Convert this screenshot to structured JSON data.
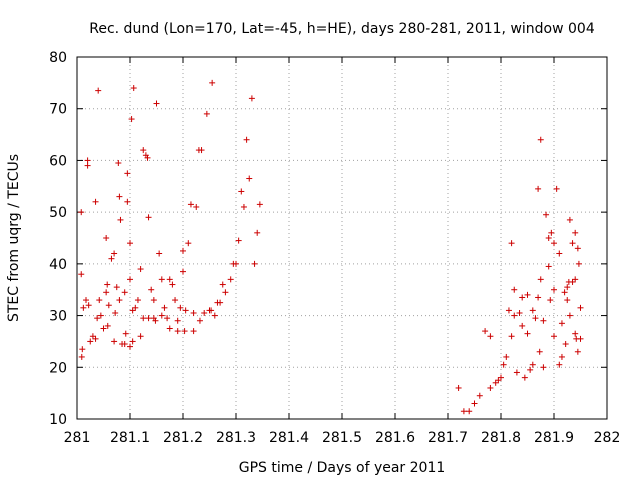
{
  "chart_data": {
    "type": "scatter",
    "title": "Rec. dund (Lon=170, Lat=-45, h=HE), days 280-281, 2011, window 004",
    "xlabel": "GPS time / Days of year 2011",
    "ylabel": "STEC from uqrg / TECUs",
    "xlim": [
      281,
      282
    ],
    "ylim": [
      10,
      80
    ],
    "xticks": [
      281,
      281.1,
      281.2,
      281.3,
      281.4,
      281.5,
      281.6,
      281.7,
      281.8,
      281.9,
      282
    ],
    "xtick_labels": [
      "281",
      "281.1",
      "281.2",
      "281.3",
      "281.4",
      "281.5",
      "281.6",
      "281.7",
      "281.8",
      "281.9",
      "282"
    ],
    "yticks": [
      10,
      20,
      30,
      40,
      50,
      60,
      70,
      80
    ],
    "ytick_labels": [
      "10",
      "20",
      "30",
      "40",
      "50",
      "60",
      "70",
      "80"
    ],
    "grid": true,
    "marker": "+",
    "color": "#cc0000",
    "series": [
      {
        "x": [
          281.008,
          281.008,
          281.009,
          281.01,
          281.012,
          281.017,
          281.02,
          281.02,
          281.022,
          281.025,
          281.03,
          281.035,
          281.035,
          281.038,
          281.04,
          281.042,
          281.045,
          281.05,
          281.055,
          281.055,
          281.057,
          281.058,
          281.06,
          281.065,
          281.07,
          281.07,
          281.072,
          281.075,
          281.078,
          281.08,
          281.08,
          281.082,
          281.085,
          281.09,
          281.09,
          281.092,
          281.095,
          281.095,
          281.1,
          281.1,
          281.1,
          281.103,
          281.105,
          281.105,
          281.107,
          281.11,
          281.115,
          281.12,
          281.12,
          281.125,
          281.125,
          281.13,
          281.133,
          281.135,
          281.135,
          281.14,
          281.145,
          281.145,
          281.148,
          281.15,
          281.155,
          281.16,
          281.16,
          281.165,
          281.17,
          281.175,
          281.175,
          281.18,
          281.185,
          281.19,
          281.19,
          281.195,
          281.2,
          281.2,
          281.203,
          281.205,
          281.21,
          281.215,
          281.22,
          281.22,
          281.225,
          281.23,
          281.232,
          281.235,
          281.24,
          281.245,
          281.25,
          281.253,
          281.255,
          281.26,
          281.265,
          281.27,
          281.275,
          281.28,
          281.29,
          281.295,
          281.3,
          281.305,
          281.31,
          281.315,
          281.32,
          281.325,
          281.33,
          281.335,
          281.34,
          281.345
        ],
        "y": [
          50,
          38,
          22,
          23.5,
          31.5,
          33,
          59,
          60,
          32,
          25,
          26,
          25.5,
          52,
          29.5,
          73.5,
          33,
          30,
          27.5,
          34.5,
          45,
          36,
          28,
          32,
          41,
          25,
          42,
          30.5,
          35.5,
          59.5,
          33,
          53,
          48.5,
          24.5,
          24.5,
          34.5,
          26.5,
          52,
          57.5,
          24,
          37,
          44,
          68,
          25,
          31,
          74,
          31.5,
          33,
          26,
          39,
          29.5,
          62,
          61,
          60.5,
          49,
          29.5,
          35,
          33,
          29.5,
          29,
          71,
          42,
          30,
          37,
          31.5,
          29.5,
          37,
          27.5,
          36,
          33,
          29,
          27,
          31.5,
          42.5,
          38.5,
          27,
          31,
          44,
          51.5,
          30.5,
          27,
          51,
          62,
          29,
          62,
          30.5,
          69,
          31,
          31,
          75,
          30,
          32.5,
          32.5,
          36,
          34.5,
          37,
          40,
          40,
          44.5,
          54,
          51,
          64,
          56.5,
          72,
          40,
          46,
          51.5
        ]
      },
      {
        "x": [
          281.72,
          281.73,
          281.74,
          281.75,
          281.76,
          281.77,
          281.78,
          281.78,
          281.79,
          281.795,
          281.8,
          281.805,
          281.81,
          281.815,
          281.82,
          281.82,
          281.825,
          281.825,
          281.83,
          281.835,
          281.84,
          281.84,
          281.845,
          281.85,
          281.85,
          281.855,
          281.86,
          281.86,
          281.865,
          281.87,
          281.87,
          281.873,
          281.875,
          281.875,
          281.88,
          281.88,
          281.885,
          281.89,
          281.89,
          281.893,
          281.895,
          281.9,
          281.9,
          281.9,
          281.905,
          281.91,
          281.91,
          281.915,
          281.915,
          281.92,
          281.922,
          281.925,
          281.925,
          281.928,
          281.93,
          281.93,
          281.935,
          281.935,
          281.94,
          281.94,
          281.94,
          281.942,
          281.945,
          281.945,
          281.947,
          281.95,
          281.95
        ],
        "y": [
          16,
          11.5,
          11.5,
          13,
          14.5,
          27,
          26,
          16,
          17,
          17.5,
          18,
          20.5,
          22,
          31,
          26,
          44,
          30,
          35,
          19,
          30.5,
          33.5,
          28,
          18,
          26.5,
          34,
          19.5,
          20.5,
          31,
          29.5,
          33.5,
          54.5,
          23,
          64,
          37,
          20,
          29,
          49.5,
          45,
          39.5,
          33,
          46,
          26,
          35,
          44,
          54.5,
          20.5,
          42,
          28.5,
          22,
          34.5,
          24.5,
          33,
          35.5,
          36.5,
          30,
          48.5,
          36.5,
          44,
          37,
          26.5,
          46,
          25.5,
          23,
          43,
          40,
          25.5,
          31.5
        ]
      }
    ]
  }
}
